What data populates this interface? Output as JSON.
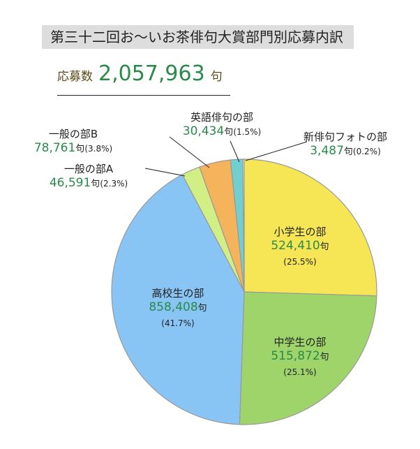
{
  "title": "第三十二回お～いお茶俳句大賞部門別応募内訳",
  "total": {
    "label": "応募数",
    "value": "2,057,963",
    "unit": "句"
  },
  "chart_data": {
    "type": "pie",
    "title": "第三十二回お～いお茶俳句大賞部門別応募内訳",
    "unit": "句",
    "slices": [
      {
        "name": "小学生の部",
        "value": 524410,
        "value_label": "524,410",
        "percent_label": "(25.5%)",
        "color": "#f6e656"
      },
      {
        "name": "中学生の部",
        "value": 515872,
        "value_label": "515,872",
        "percent_label": "(25.1%)",
        "color": "#9ed46a"
      },
      {
        "name": "高校生の部",
        "value": 858408,
        "value_label": "858,408",
        "percent_label": "(41.7%)",
        "color": "#88c4f4"
      },
      {
        "name": "一般の部A",
        "value": 46591,
        "value_label": "46,591",
        "percent_label": "(2.3%)",
        "color": "#d2ef85"
      },
      {
        "name": "一般の部B",
        "value": 78761,
        "value_label": "78,761",
        "percent_label": "(3.8%)",
        "color": "#f5b45c"
      },
      {
        "name": "英語俳句の部",
        "value": 30434,
        "value_label": "30,434",
        "percent_label": "(1.5%)",
        "color": "#72cfd0"
      },
      {
        "name": "新俳句フォトの部",
        "value": 3487,
        "value_label": "3,487",
        "percent_label": "(0.2%)",
        "color": "#f4f4f4"
      }
    ]
  }
}
